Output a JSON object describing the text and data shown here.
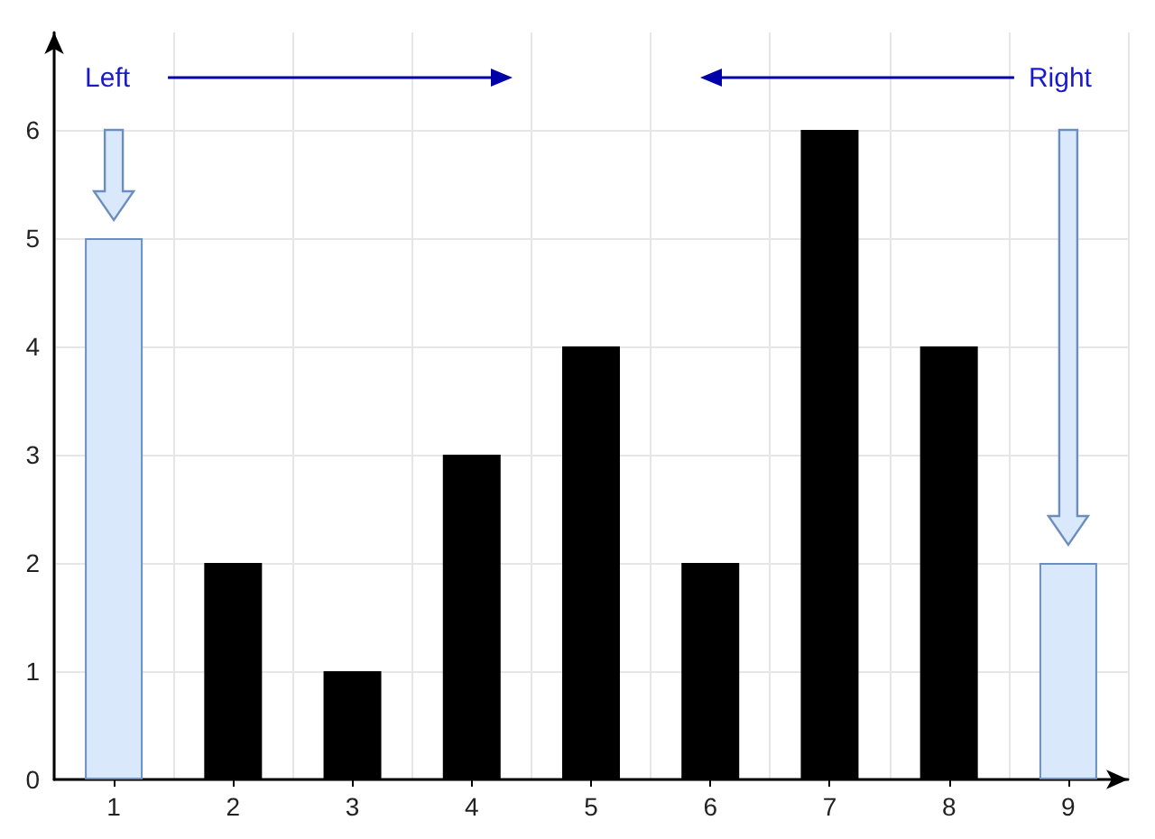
{
  "chart_data": {
    "type": "bar",
    "categories": [
      "1",
      "2",
      "3",
      "4",
      "5",
      "6",
      "7",
      "8",
      "9"
    ],
    "values": [
      5,
      2,
      1,
      3,
      4,
      2,
      6,
      4,
      2
    ],
    "colors": [
      "#dae8fc",
      "#000000",
      "#000000",
      "#000000",
      "#000000",
      "#000000",
      "#000000",
      "#000000",
      "#dae8fc"
    ],
    "ylim": [
      0,
      6.9
    ],
    "yticks": [
      0,
      1,
      2,
      3,
      4,
      5,
      6
    ],
    "grid": true,
    "annotations": [
      "Left",
      "Right"
    ]
  }
}
